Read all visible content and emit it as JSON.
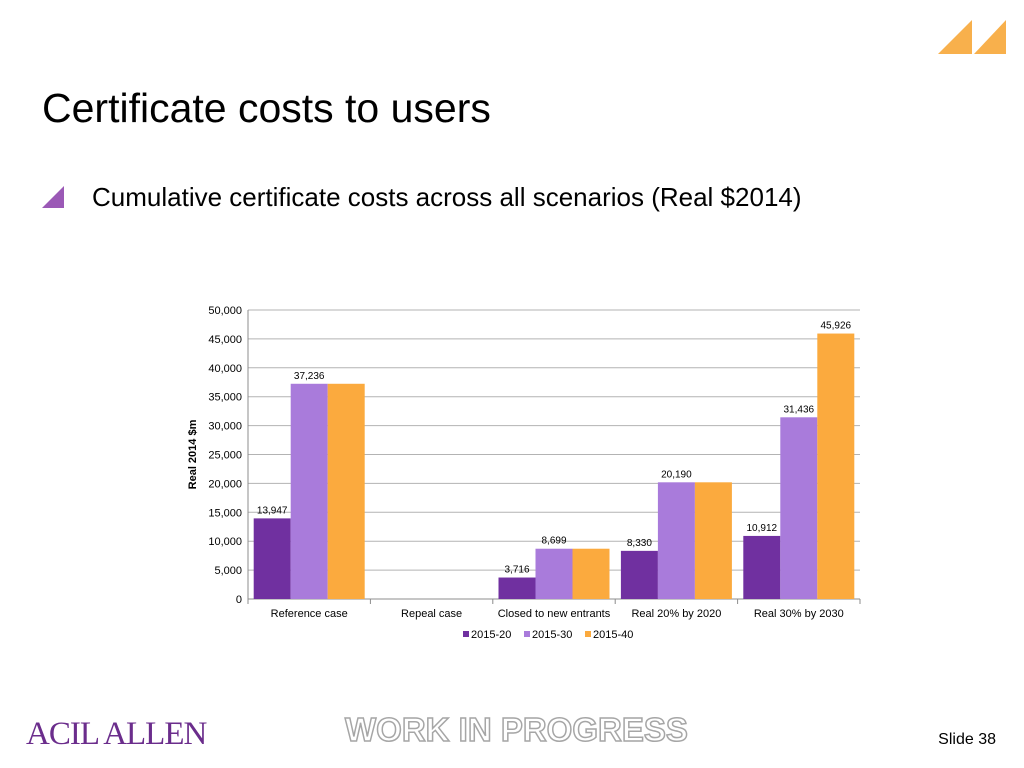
{
  "slide": {
    "title": "Certificate costs to users",
    "bullet": "Cumulative certificate costs across all scenarios (Real $2014)",
    "brand": "ACIL ALLEN",
    "watermark": "WORK IN PROGRESS",
    "slide_number": "Slide 38"
  },
  "colors": {
    "accent_purple": "#9b59b6",
    "corner_orange": "#f8b04c",
    "series_2015_20": "#7030a0",
    "series_2015_30": "#a97bdb",
    "series_2015_40": "#fbaa3e"
  },
  "icons": {
    "bullet": "triangle-bullet-icon",
    "corner": "double-triangle-logo-icon"
  },
  "chart_data": {
    "type": "bar",
    "ylabel": "Real 2014 $m",
    "ylim": [
      0,
      50000
    ],
    "yticks": [
      "0",
      "5,000",
      "10,000",
      "15,000",
      "20,000",
      "25,000",
      "30,000",
      "35,000",
      "40,000",
      "45,000",
      "50,000"
    ],
    "grid": true,
    "legend": "bottom",
    "categories": [
      "Reference case",
      "Repeal case",
      "Closed to new entrants",
      "Real 20% by 2020",
      "Real 30% by 2030"
    ],
    "series": [
      {
        "name": "2015-20",
        "color": "#7030a0",
        "values": [
          13947,
          0,
          3716,
          8330,
          10912
        ],
        "labels": [
          "13,947",
          "",
          "3,716",
          "8,330",
          "10,912"
        ]
      },
      {
        "name": "2015-30",
        "color": "#a97bdb",
        "values": [
          37236,
          0,
          8699,
          20190,
          31436
        ],
        "labels": [
          "37,236",
          "",
          "8,699",
          "20,190",
          "31,436"
        ]
      },
      {
        "name": "2015-40",
        "color": "#fbaa3e",
        "values": [
          37236,
          0,
          8699,
          20190,
          45926
        ],
        "labels": [
          "",
          "",
          "",
          "",
          "45,926"
        ]
      }
    ]
  }
}
